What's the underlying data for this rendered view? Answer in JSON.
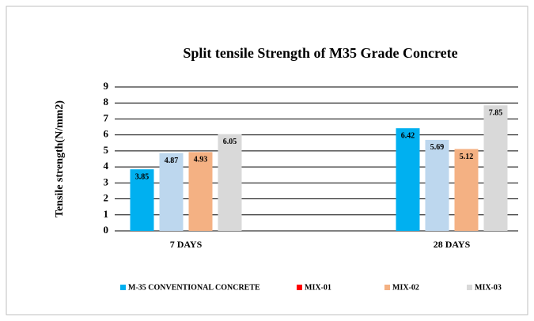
{
  "chart_data": {
    "type": "bar",
    "title": "Split tensile Strength of M35 Grade Concrete",
    "y_label": "Tensile strength(N/mm2)",
    "categories": [
      "7 DAYS",
      "28 DAYS"
    ],
    "series": [
      {
        "name": "M-35 CONVENTIONAL CONCRETE",
        "color": "#00b0f0",
        "legend_color": "#00b0f0",
        "values": [
          3.85,
          6.42
        ]
      },
      {
        "name": "MIX-01",
        "color": "#bdd7ee",
        "legend_color": "#ff0000",
        "values": [
          4.87,
          5.69
        ]
      },
      {
        "name": "MIX-02",
        "color": "#f4b183",
        "legend_color": "#f4b183",
        "values": [
          4.93,
          5.12
        ]
      },
      {
        "name": "MIX-03",
        "color": "#d9d9d9",
        "legend_color": "#d9d9d9",
        "values": [
          6.05,
          7.85
        ]
      }
    ],
    "ylim": [
      0,
      9
    ],
    "yticks": [
      0,
      1,
      2,
      3,
      4,
      5,
      6,
      7,
      8,
      9
    ],
    "grid": true,
    "legend": "bottom"
  }
}
